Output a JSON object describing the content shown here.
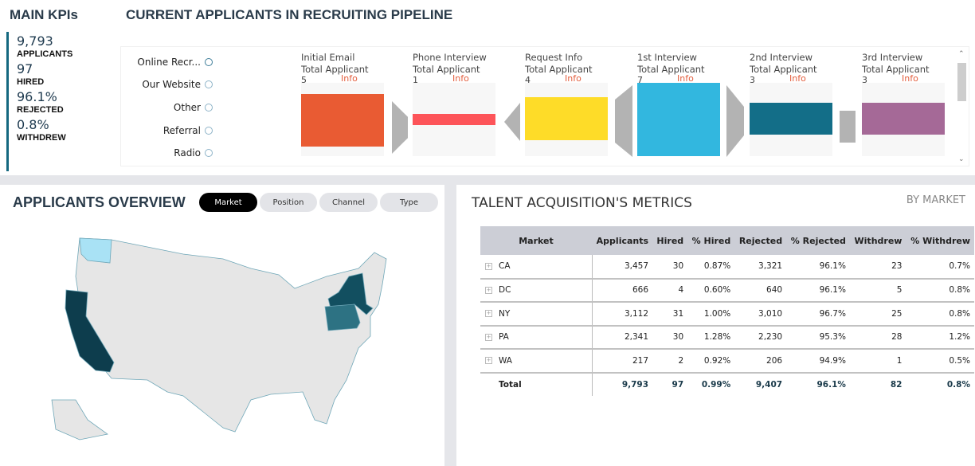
{
  "kpis": {
    "title": "MAIN KPIs",
    "items": [
      {
        "value": "9,793",
        "label": "APPLICANTS"
      },
      {
        "value": "97",
        "label": "HIRED"
      },
      {
        "value": "96.1%",
        "label": "REJECTED"
      },
      {
        "value": "0.8%",
        "label": "WITHDREW"
      }
    ]
  },
  "pipeline": {
    "title": "CURRENT APPLICANTS IN RECRUITING PIPELINE",
    "channels": [
      {
        "label": "Online Recr...",
        "selected": true
      },
      {
        "label": "Our Website",
        "selected": false
      },
      {
        "label": "Other",
        "selected": false
      },
      {
        "label": "Referral",
        "selected": false
      },
      {
        "label": "Radio",
        "selected": false
      }
    ],
    "stages": [
      {
        "name": "Initial Email",
        "sub": "Total Applicant",
        "count": "5",
        "info": "Info",
        "color": "#e95b33"
      },
      {
        "name": "Phone Interview",
        "sub": "Total Applicant",
        "count": "1",
        "info": "Info",
        "color": "#fd5459"
      },
      {
        "name": "Request Info",
        "sub": "Total Applicant",
        "count": "4",
        "info": "Info",
        "color": "#fedc28"
      },
      {
        "name": "1st Interview",
        "sub": "Total Applicant",
        "count": "7",
        "info": "Info",
        "color": "#32b7df"
      },
      {
        "name": "2nd Interview",
        "sub": "Total Applicant",
        "count": "3",
        "info": "Info",
        "color": "#136e88"
      },
      {
        "name": "3rd Interview",
        "sub": "Total Applicant",
        "count": "3",
        "info": "Info",
        "color": "#a56997"
      }
    ]
  },
  "overview": {
    "title": "APPLICANTS OVERVIEW",
    "tabs": [
      "Market",
      "Position",
      "Channel",
      "Type"
    ],
    "active_tab": "Market",
    "map_colors": {
      "CA": "#0d3d4d",
      "NY": "#124f60",
      "PA": "#2d7283",
      "WA": "#a9e2f5",
      "other": "#e6e6e6",
      "border": "#6fa7b8"
    }
  },
  "metrics": {
    "title": "TALENT ACQUISITION'S METRICS",
    "subtitle": "BY MARKET",
    "columns": [
      "Market",
      "Applicants",
      "Hired",
      "% Hired",
      "Rejected",
      "% Rejected",
      "Withdrew",
      "% Withdrew"
    ],
    "rows": [
      [
        "CA",
        "3,457",
        "30",
        "0.87%",
        "3,321",
        "96.1%",
        "23",
        "0.7%"
      ],
      [
        "DC",
        "666",
        "4",
        "0.60%",
        "640",
        "96.1%",
        "5",
        "0.8%"
      ],
      [
        "NY",
        "3,112",
        "31",
        "1.00%",
        "3,010",
        "96.7%",
        "25",
        "0.8%"
      ],
      [
        "PA",
        "2,341",
        "30",
        "1.28%",
        "2,230",
        "95.3%",
        "28",
        "1.2%"
      ],
      [
        "WA",
        "217",
        "2",
        "0.92%",
        "206",
        "94.9%",
        "1",
        "0.5%"
      ]
    ],
    "total": [
      "Total",
      "9,793",
      "97",
      "0.99%",
      "9,407",
      "96.1%",
      "82",
      "0.8%"
    ]
  }
}
